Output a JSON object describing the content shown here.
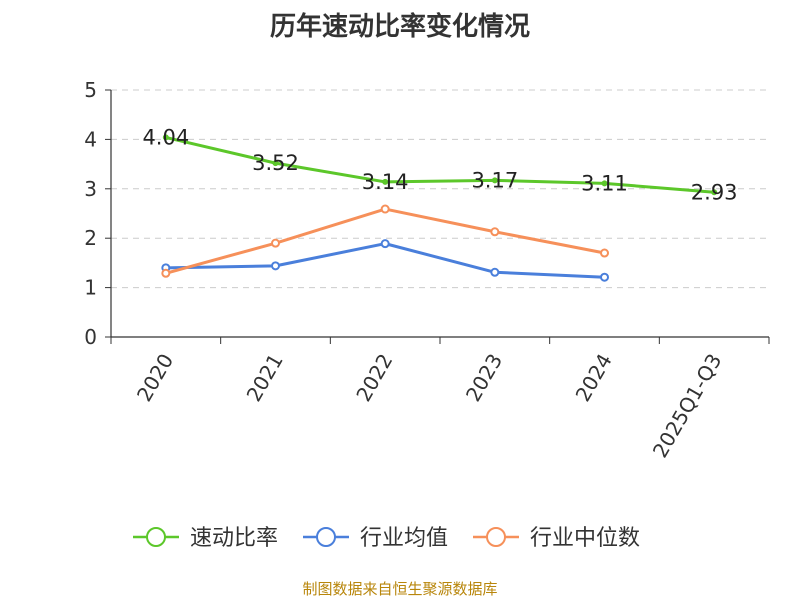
{
  "chart_data": {
    "type": "line",
    "title": "历年速动比率变化情况",
    "categories": [
      "2020",
      "2021",
      "2022",
      "2023",
      "2024",
      "2025Q1-Q3"
    ],
    "ylim": [
      0,
      5
    ],
    "yticks": [
      0,
      1,
      2,
      3,
      4,
      5
    ],
    "grid": true,
    "legend_position": "bottom",
    "series": [
      {
        "name": "速动比率",
        "color": "#5cc72a",
        "values": [
          4.04,
          3.52,
          3.14,
          3.17,
          3.11,
          2.93
        ],
        "labels": [
          "4.04",
          "3.52",
          "3.14",
          "3.17",
          "3.11",
          "2.93"
        ]
      },
      {
        "name": "行业均值",
        "color": "#4a7fdb",
        "values": [
          1.4,
          1.44,
          1.89,
          1.31,
          1.21,
          null
        ]
      },
      {
        "name": "行业中位数",
        "color": "#f6905a",
        "values": [
          1.29,
          1.9,
          2.59,
          2.13,
          1.7,
          null
        ]
      }
    ]
  },
  "source": "制图数据来自恒生聚源数据库"
}
